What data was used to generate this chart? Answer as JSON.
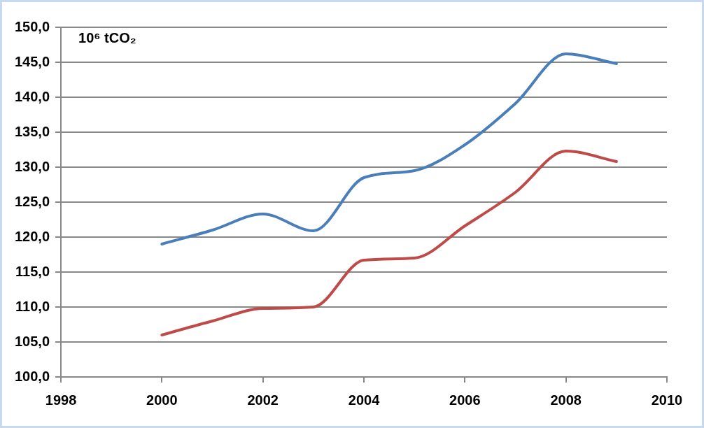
{
  "chart_data": {
    "type": "line",
    "ylabel": "10⁶ tCO₂",
    "x": [
      2000,
      2001,
      2002,
      2003,
      2004,
      2005,
      2006,
      2007,
      2008,
      2009
    ],
    "series": [
      {
        "color": "#4a7ebb",
        "values": [
          119.0,
          121.0,
          123.3,
          120.9,
          128.5,
          129.5,
          133.2,
          139.1,
          146.2,
          144.8
        ]
      },
      {
        "color": "#be4b48",
        "values": [
          106.0,
          108.0,
          109.8,
          110.0,
          116.7,
          117.0,
          121.6,
          126.4,
          132.3,
          130.8
        ]
      }
    ],
    "xlim": [
      1998,
      2010
    ],
    "xticks": [
      1998,
      2000,
      2002,
      2004,
      2006,
      2008,
      2010
    ],
    "ylim": [
      100,
      150
    ],
    "yticks": [
      {
        "value": 100,
        "label": "100,0"
      },
      {
        "value": 105,
        "label": "105,0"
      },
      {
        "value": 110,
        "label": "110,0"
      },
      {
        "value": 115,
        "label": "115,0"
      },
      {
        "value": 120,
        "label": "120,0"
      },
      {
        "value": 125,
        "label": "125,0"
      },
      {
        "value": 130,
        "label": "130,0"
      },
      {
        "value": 135,
        "label": "135,0"
      },
      {
        "value": 140,
        "label": "140,0"
      },
      {
        "value": 145,
        "label": "145,0"
      },
      {
        "value": 150,
        "label": "150,0"
      }
    ],
    "grid": "y",
    "legend": false,
    "marker": "none",
    "line_style": "solid"
  }
}
